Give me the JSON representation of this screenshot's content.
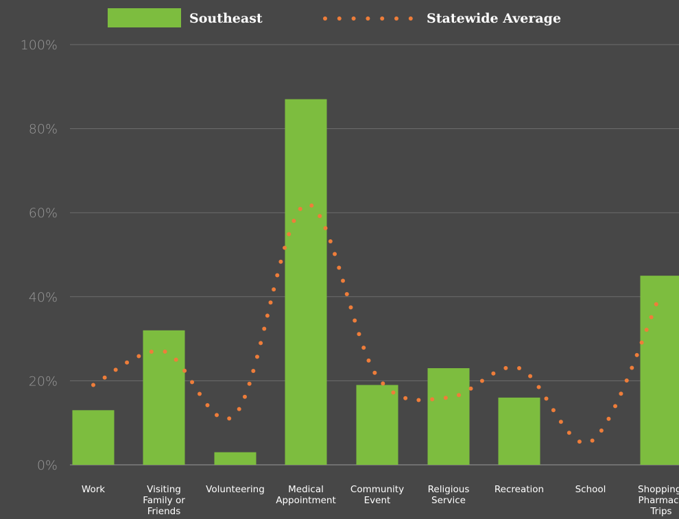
{
  "chart_data": {
    "type": "bar",
    "categories": [
      [
        "Work"
      ],
      [
        "Visiting",
        "Family or",
        "Friends"
      ],
      [
        "Volunteering"
      ],
      [
        "Medical",
        "Appointment"
      ],
      [
        "Community",
        "Event"
      ],
      [
        "Religious",
        "Service"
      ],
      [
        "Recreation"
      ],
      [
        "School"
      ],
      [
        "Shopping/",
        "Pharmacy",
        "Trips"
      ]
    ],
    "series": [
      {
        "name": "Southeast",
        "kind": "bar",
        "color": "#7dbd3f",
        "values": [
          13,
          32,
          3,
          87,
          19,
          23,
          16,
          0,
          45
        ]
      },
      {
        "name": "Statewide Average",
        "kind": "dotted-line",
        "color": "#ee7d3a",
        "values": [
          19,
          27,
          12,
          62,
          21,
          16,
          23,
          5.5,
          41
        ]
      }
    ],
    "yticks": [
      "0%",
      "20%",
      "40%",
      "60%",
      "80%",
      "100%"
    ],
    "ylim": [
      0,
      100
    ],
    "grid": true,
    "legend_position": "top"
  }
}
